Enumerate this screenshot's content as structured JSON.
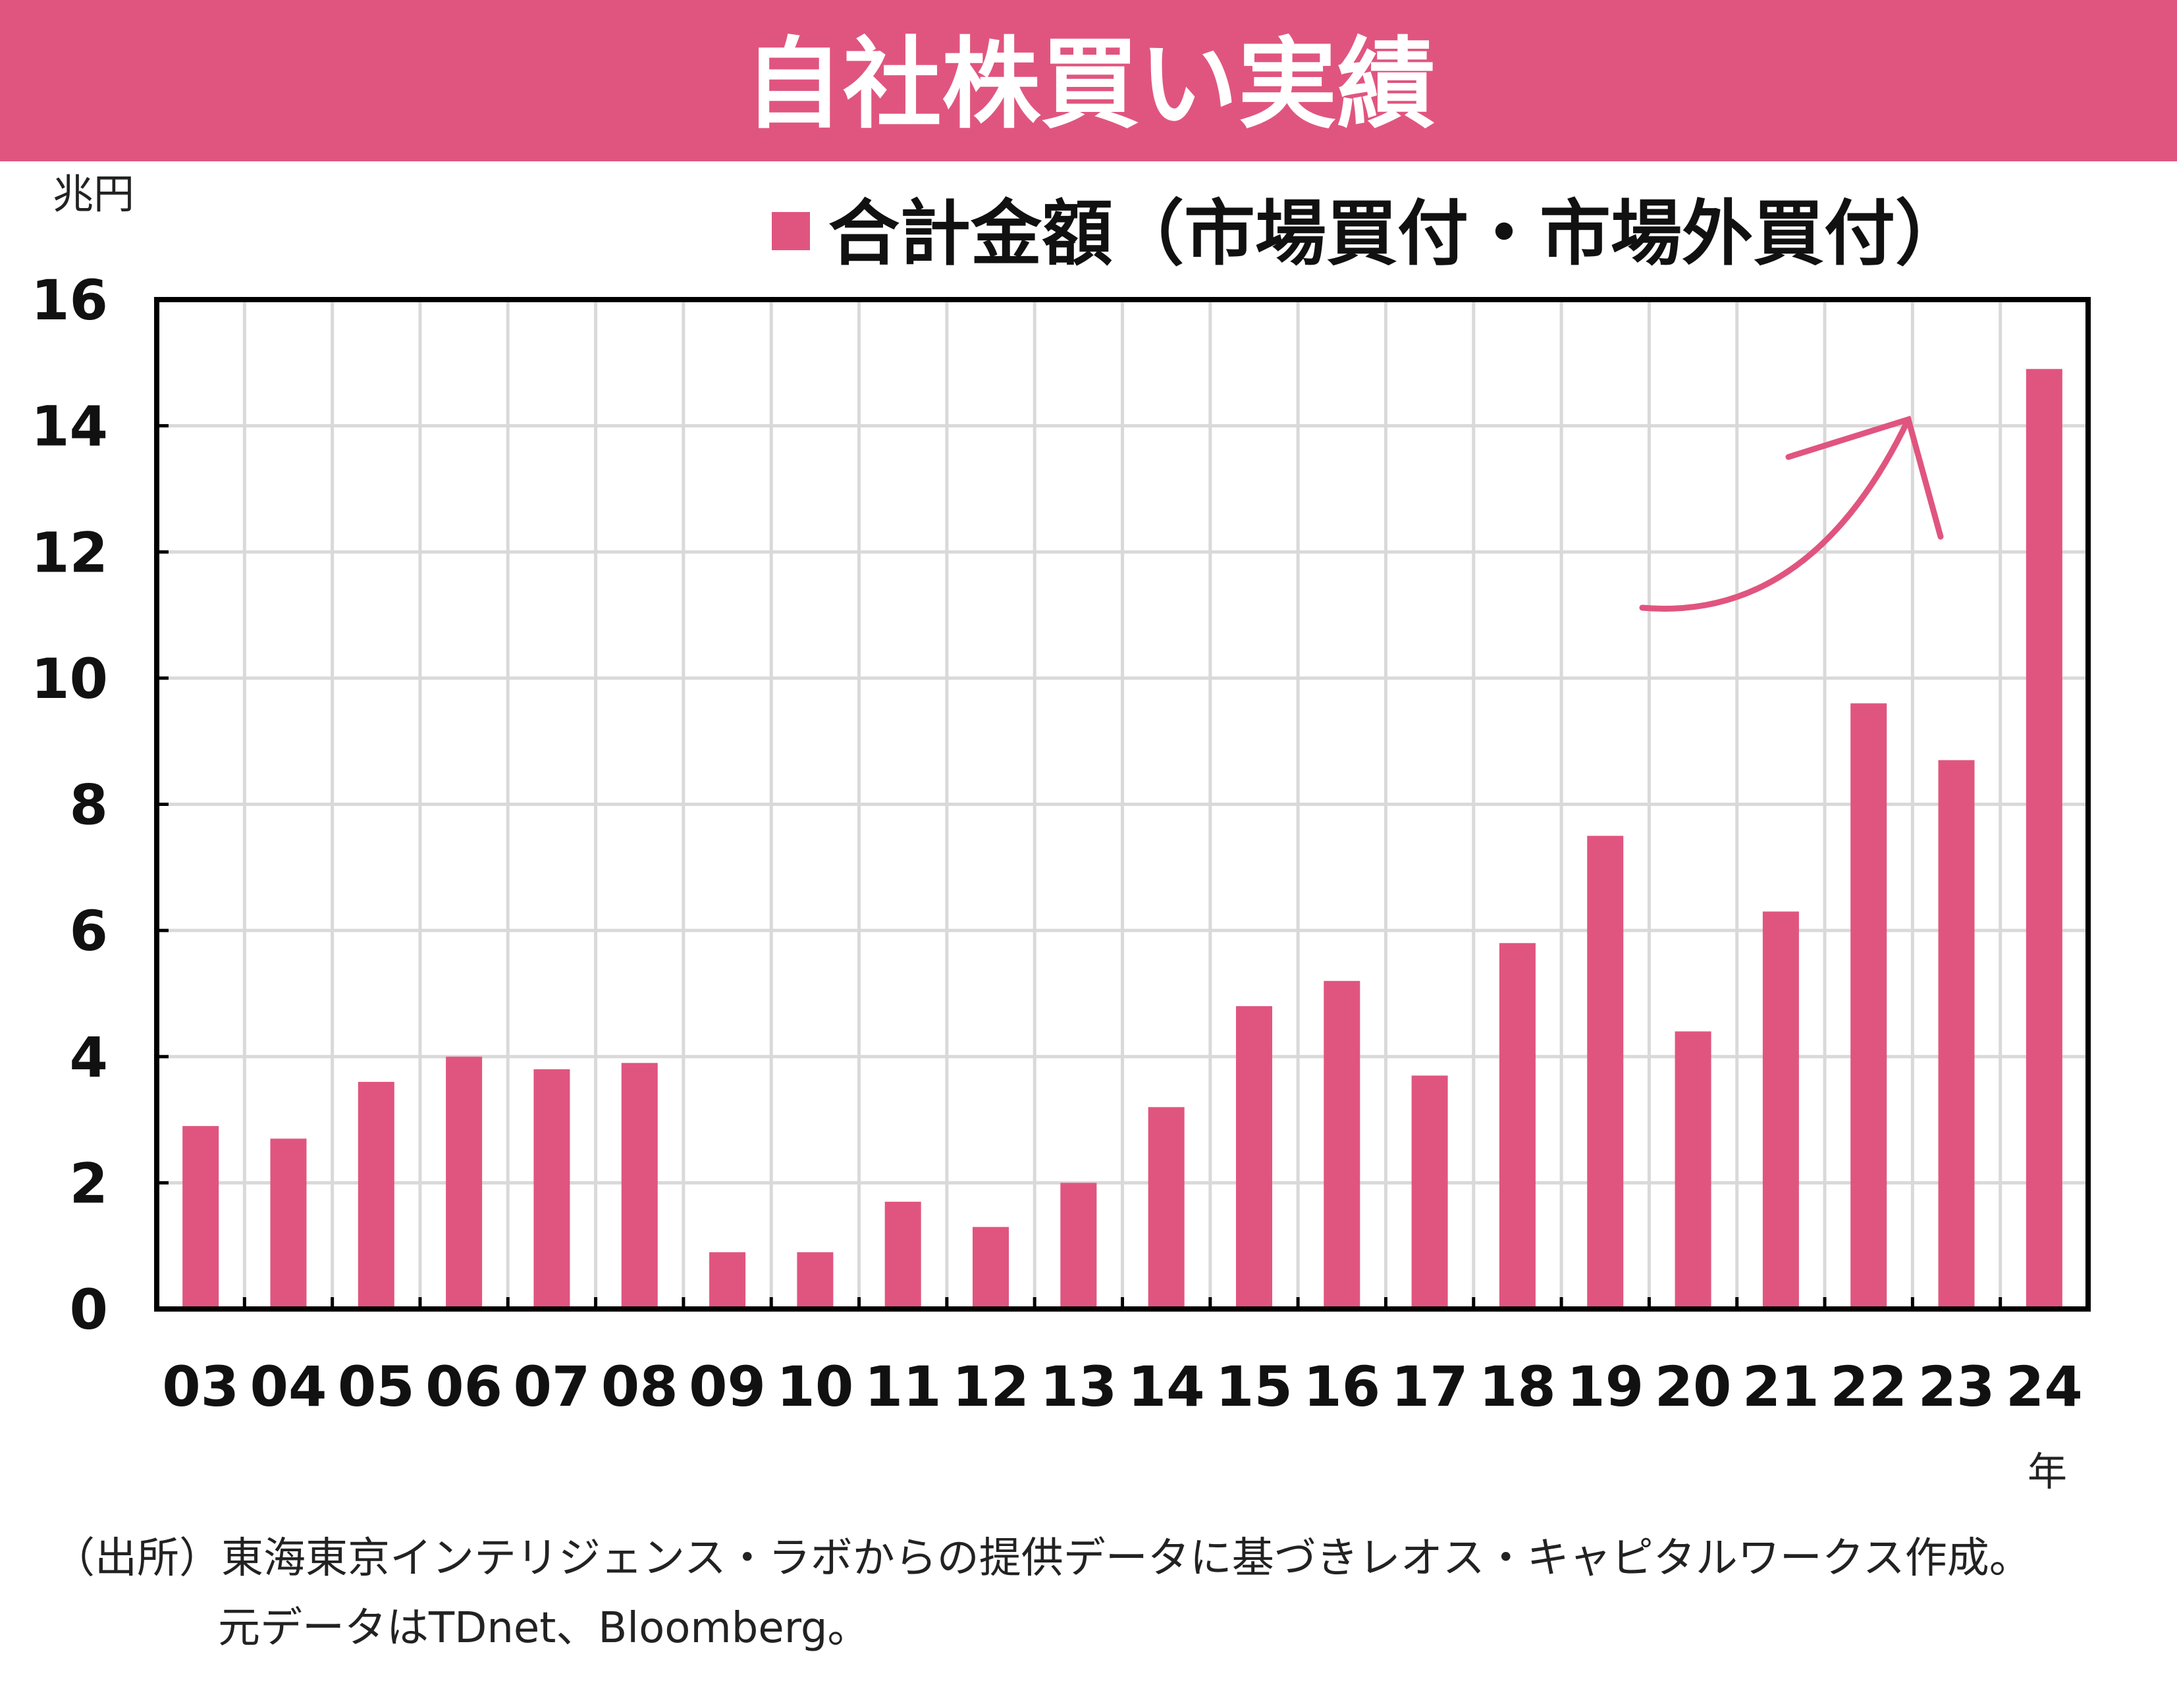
{
  "title": "自社株買い実績",
  "colors": {
    "accent": "#e0557f",
    "grid": "#d9d9d9",
    "axis": "#000000"
  },
  "chart_data": {
    "type": "bar",
    "title": "自社株買い実績",
    "ylabel": "兆円",
    "xlabel": "年",
    "ylim": [
      0,
      16
    ],
    "yticks": [
      "0",
      "2",
      "4",
      "6",
      "8",
      "10",
      "12",
      "14",
      "16"
    ],
    "grid": true,
    "legend_position": "top-right",
    "categories": [
      "03",
      "04",
      "05",
      "06",
      "07",
      "08",
      "09",
      "10",
      "11",
      "12",
      "13",
      "14",
      "15",
      "16",
      "17",
      "18",
      "19",
      "20",
      "21",
      "22",
      "23",
      "24"
    ],
    "series": [
      {
        "name": "合計金額（市場買付・市場外買付）",
        "values": [
          2.9,
          2.7,
          3.6,
          4.0,
          3.8,
          3.9,
          0.9,
          0.9,
          1.7,
          1.3,
          2.0,
          3.2,
          4.8,
          5.2,
          3.7,
          5.8,
          7.5,
          4.4,
          6.3,
          9.6,
          8.7,
          14.9
        ]
      }
    ],
    "annotations": [
      "upward-arrow"
    ]
  },
  "footer": {
    "line1": "（出所）東海東京インテリジェンス・ラボからの提供データに基づきレオス・キャピタルワークス作成。",
    "line2": "元データはTDnet、Bloomberg。"
  }
}
